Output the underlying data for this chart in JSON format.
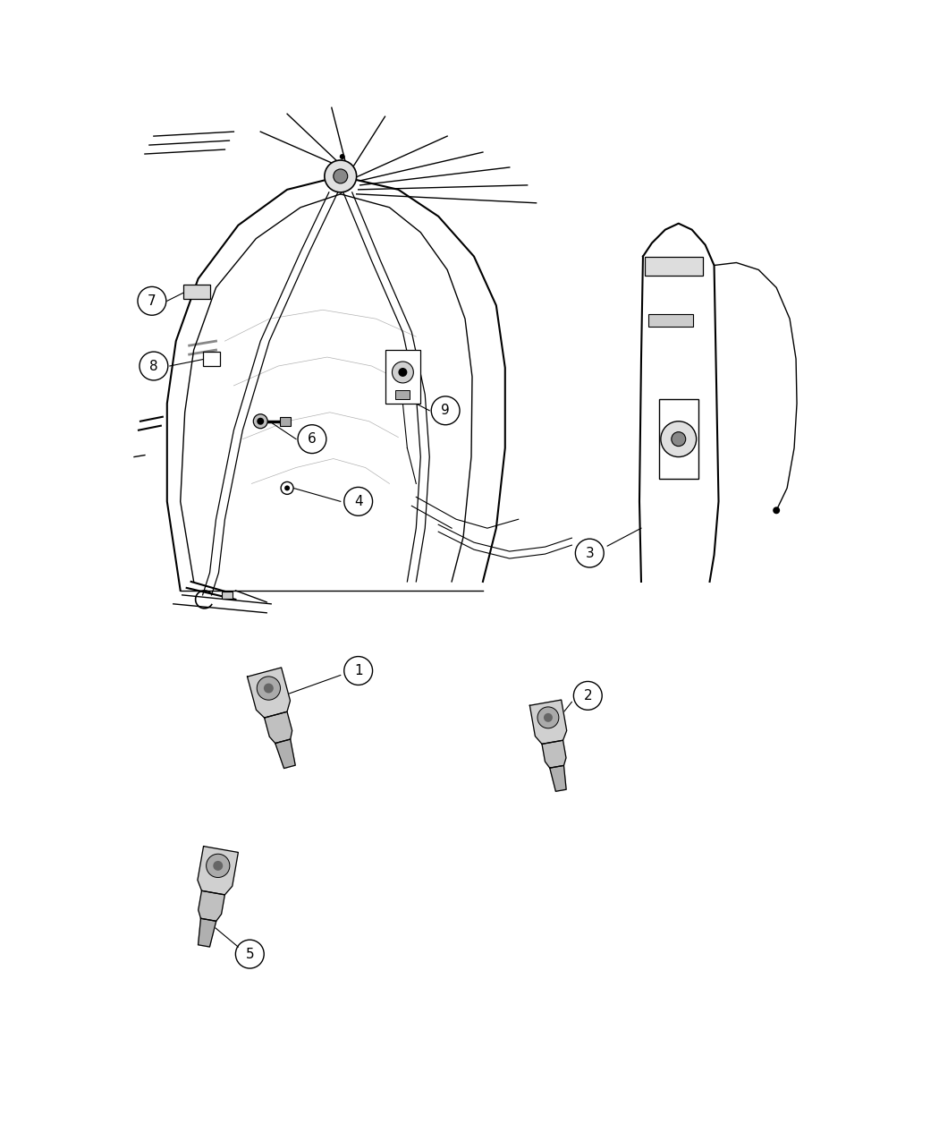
{
  "background_color": "#ffffff",
  "line_color": "#000000",
  "fig_width": 10.5,
  "fig_height": 12.75,
  "dpi": 100
}
